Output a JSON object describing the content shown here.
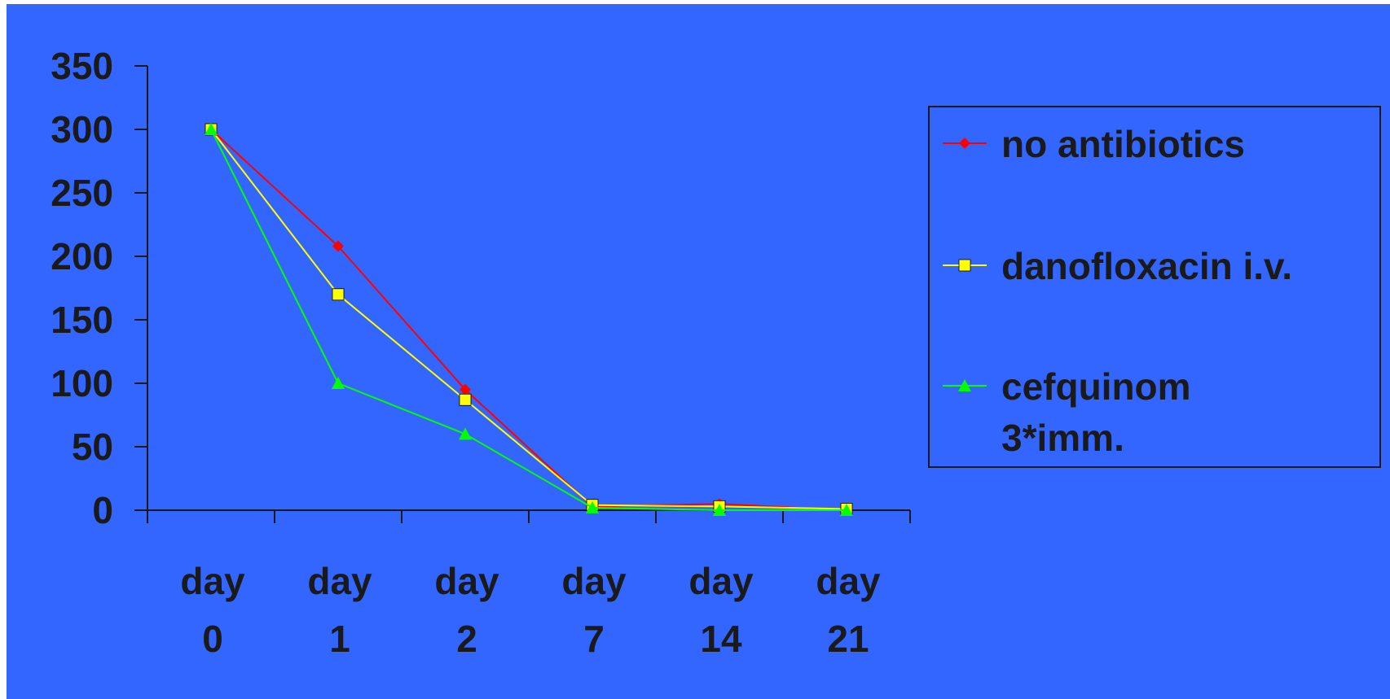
{
  "chart_data": {
    "type": "line",
    "background": "#3366ff",
    "categories": [
      [
        "day",
        "0"
      ],
      [
        "day",
        "1"
      ],
      [
        "day",
        "2"
      ],
      [
        "day",
        "7"
      ],
      [
        "day",
        "14"
      ],
      [
        "day",
        "21"
      ]
    ],
    "yticks": [
      "0",
      "50",
      "100",
      "150",
      "200",
      "250",
      "300",
      "350"
    ],
    "ylim": [
      0,
      350
    ],
    "grid": false,
    "legend_position": "right",
    "series": [
      {
        "name": "no antibiotics",
        "color": "#ff0000",
        "marker": "diamond",
        "values": [
          300,
          208,
          95,
          3,
          5,
          0
        ]
      },
      {
        "name": "danofloxacin i.v.",
        "color": "#ffff00",
        "marker": "square",
        "values": [
          300,
          170,
          87,
          4,
          3,
          1
        ]
      },
      {
        "name": "cefquinom 3*imm.",
        "legend_lines": [
          "cefquinom",
          "3*imm."
        ],
        "color": "#00ff00",
        "marker": "triangle",
        "values": [
          300,
          100,
          60,
          2,
          0,
          0
        ]
      }
    ]
  }
}
